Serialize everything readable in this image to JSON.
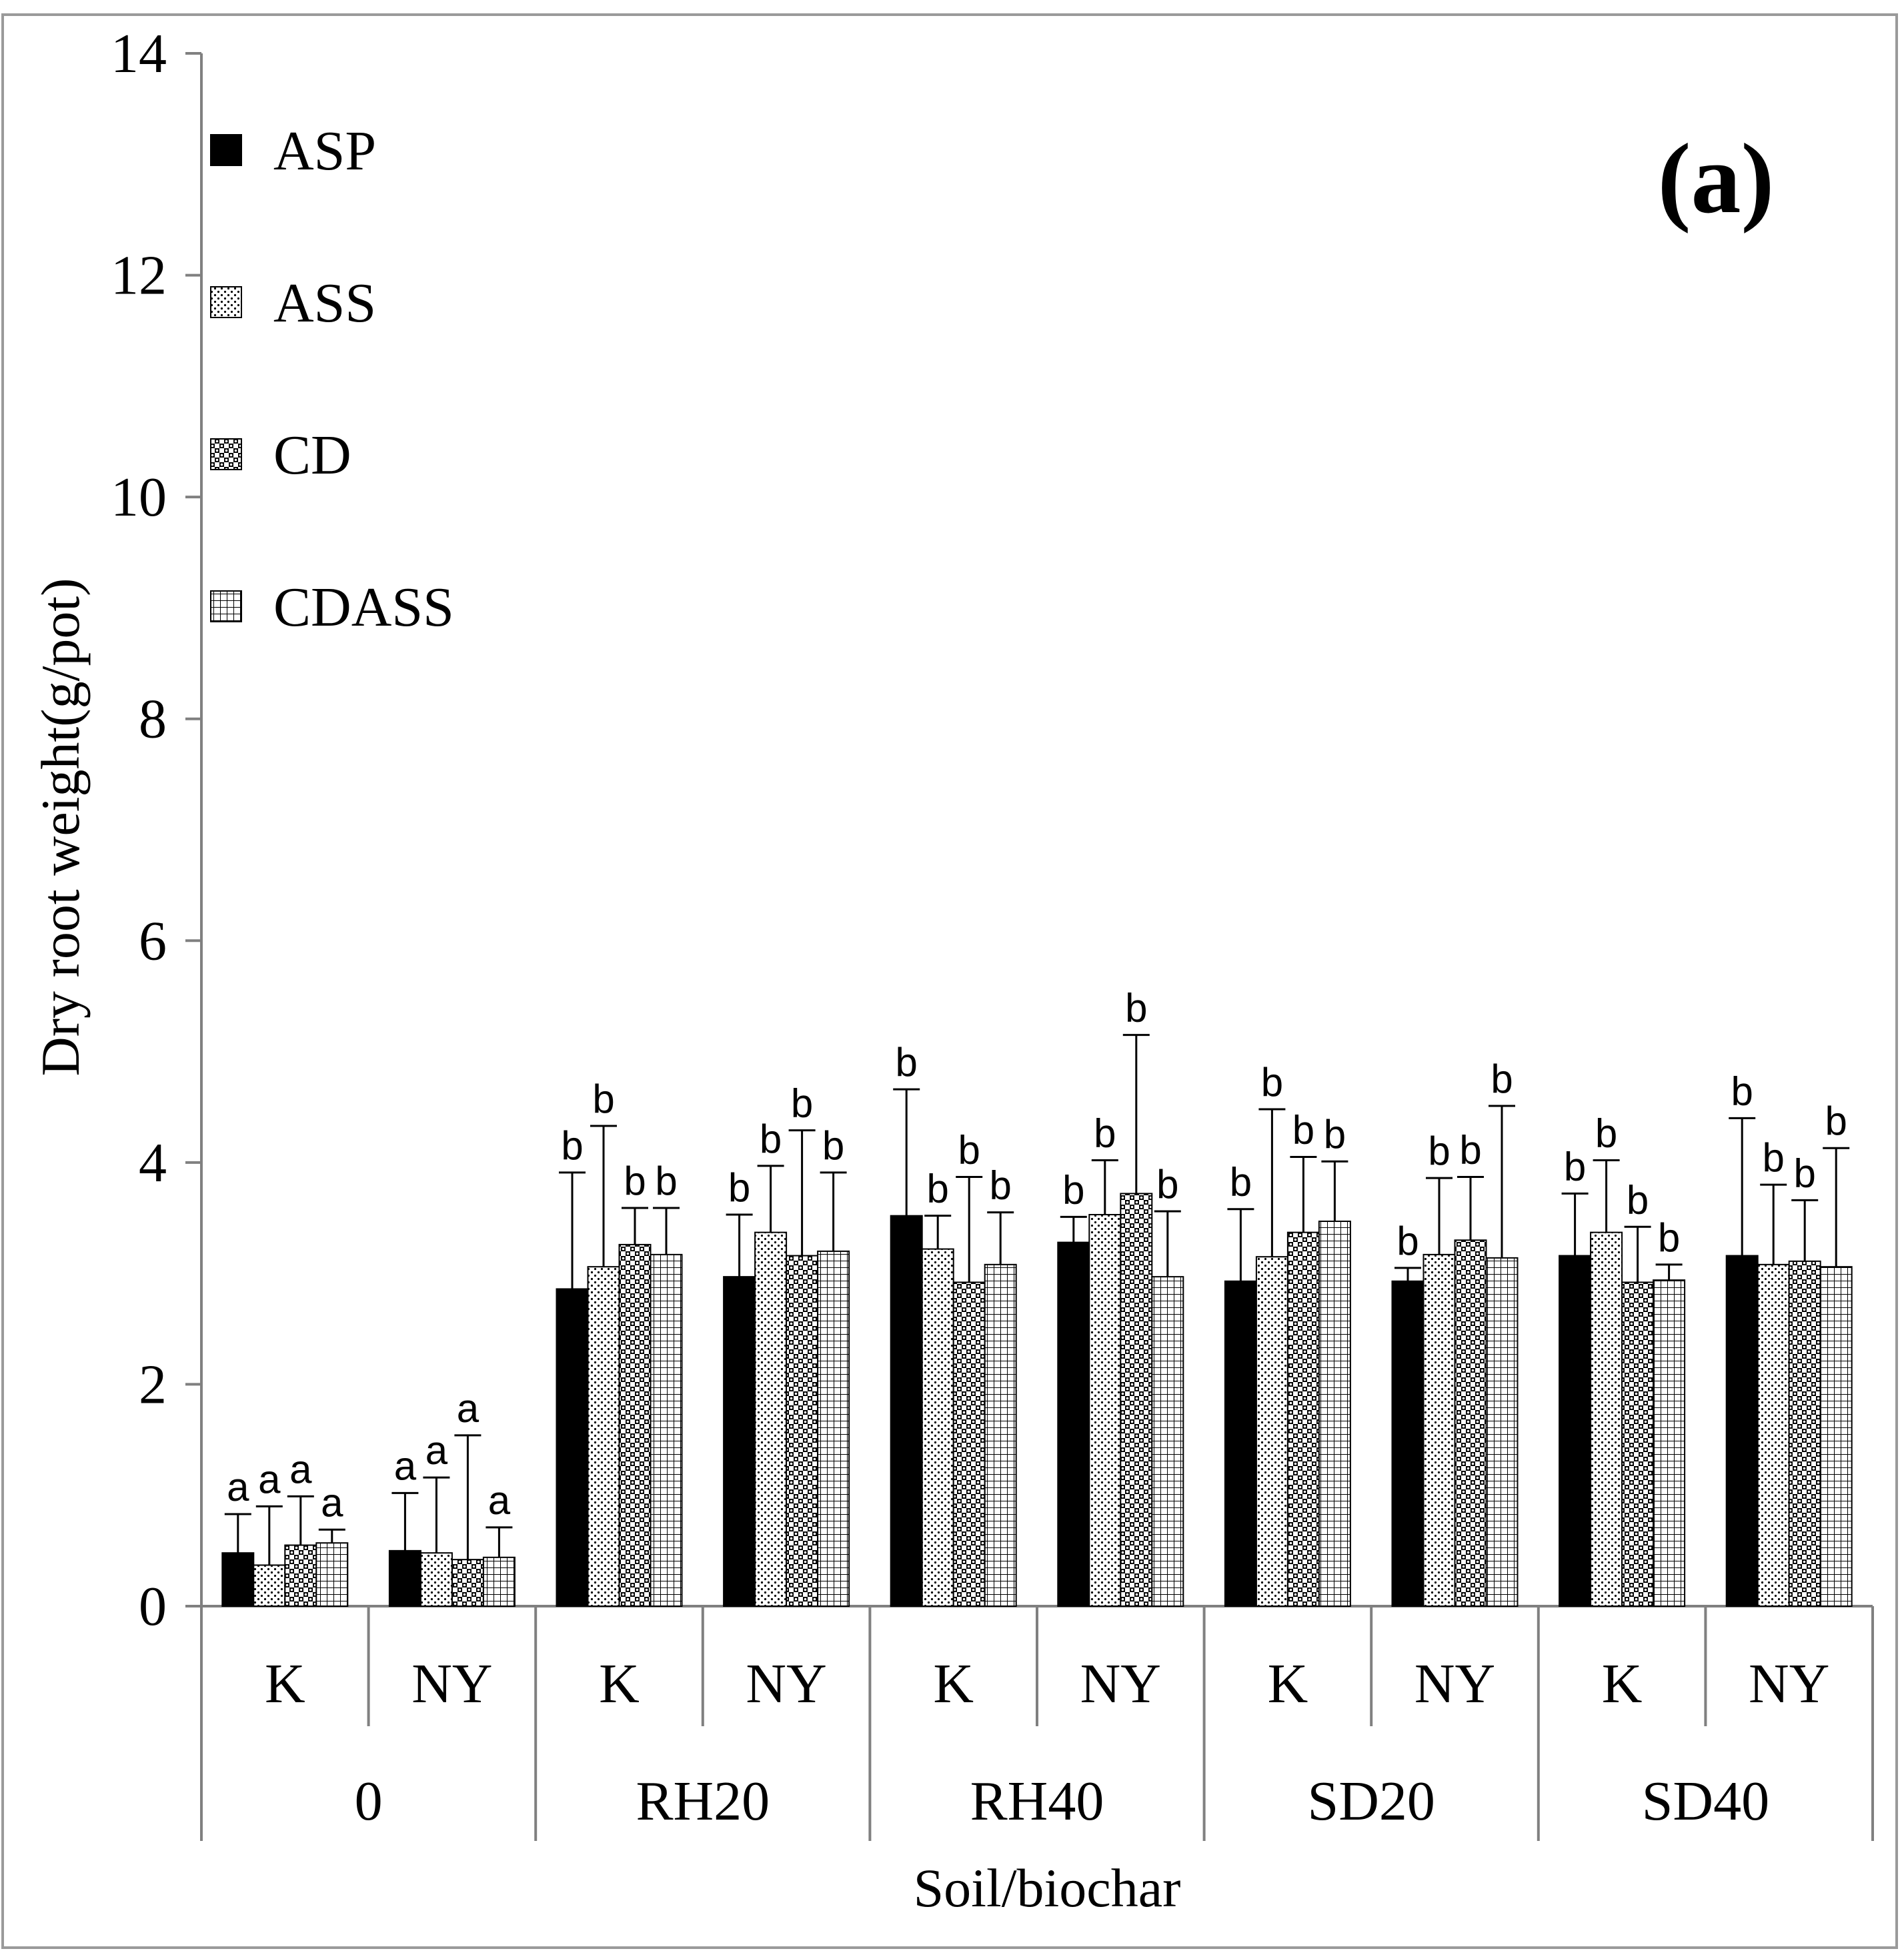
{
  "chart_data": {
    "type": "bar",
    "panel_label": "(a)",
    "ylabel": "Dry root weight(g/pot)",
    "xlabel": "Soil/biochar",
    "ylim": [
      0,
      14
    ],
    "yticks": [
      0,
      2,
      4,
      6,
      8,
      10,
      12,
      14
    ],
    "grid": false,
    "legend_position": "top-left",
    "groups": [
      {
        "label": "0",
        "categories": [
          "K",
          "NY"
        ]
      },
      {
        "label": "RH20",
        "categories": [
          "K",
          "NY"
        ]
      },
      {
        "label": "RH40",
        "categories": [
          "K",
          "NY"
        ]
      },
      {
        "label": "SD20",
        "categories": [
          "K",
          "NY"
        ]
      },
      {
        "label": "SD40",
        "categories": [
          "K",
          "NY"
        ]
      }
    ],
    "categories": [
      "0 K",
      "0 NY",
      "RH20 K",
      "RH20 NY",
      "RH40 K",
      "RH40 NY",
      "SD20 K",
      "SD20 NY",
      "SD40 K",
      "SD40 NY"
    ],
    "series": [
      {
        "name": "ASP",
        "pattern": "solid",
        "values": [
          0.48,
          0.5,
          2.86,
          2.97,
          3.52,
          3.28,
          2.93,
          2.93,
          3.16,
          3.16
        ],
        "errors": [
          0.35,
          0.52,
          1.05,
          0.56,
          1.14,
          0.23,
          0.65,
          0.12,
          0.56,
          1.24
        ],
        "labels": [
          "a",
          "a",
          "b",
          "b",
          "b",
          "b",
          "b",
          "b",
          "b",
          "b"
        ]
      },
      {
        "name": "ASS",
        "pattern": "dots",
        "values": [
          0.37,
          0.48,
          3.06,
          3.37,
          3.22,
          3.53,
          3.15,
          3.17,
          3.37,
          3.08
        ],
        "errors": [
          0.53,
          0.68,
          1.27,
          0.6,
          0.3,
          0.49,
          1.33,
          0.69,
          0.65,
          0.72
        ],
        "labels": [
          "a",
          "a",
          "b",
          "b",
          "b",
          "b",
          "b",
          "b",
          "b",
          "b"
        ]
      },
      {
        "name": "CD",
        "pattern": "checker",
        "values": [
          0.55,
          0.42,
          3.26,
          3.16,
          2.92,
          3.72,
          3.37,
          3.3,
          2.92,
          3.11
        ],
        "errors": [
          0.44,
          1.12,
          0.33,
          1.13,
          0.95,
          1.43,
          0.68,
          0.57,
          0.5,
          0.55
        ],
        "labels": [
          "a",
          "a",
          "b",
          "b",
          "b",
          "b",
          "b",
          "b",
          "b",
          "b"
        ]
      },
      {
        "name": "CDASS",
        "pattern": "grid",
        "values": [
          0.57,
          0.44,
          3.17,
          3.2,
          3.08,
          2.97,
          3.47,
          3.14,
          2.94,
          3.06
        ],
        "errors": [
          0.12,
          0.27,
          0.42,
          0.71,
          0.47,
          0.59,
          0.54,
          1.37,
          0.14,
          1.07
        ],
        "labels": [
          "a",
          "a",
          "b",
          "b",
          "b",
          "b",
          "b",
          "b",
          "b",
          "b"
        ]
      }
    ]
  }
}
